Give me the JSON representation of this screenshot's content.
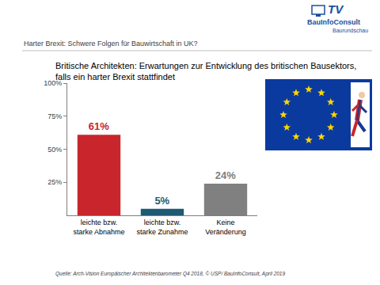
{
  "chart_data": {
    "type": "bar",
    "title": "Harter Brexit: Schwere Folgen für Bauwirtschaft in UK?",
    "subtitle": "Britische Architekten: Erwartungen zur Entwicklung des britischen Bausektors,\nfalls ein harter Brexit stattfindet",
    "categories": [
      "leichte bzw.\nstarke Abnahme",
      "leichte bzw.\nstarke Zunahme",
      "Keine\nVeränderung"
    ],
    "values": [
      61,
      5,
      24
    ],
    "value_labels": [
      "61%",
      "5%",
      "24%"
    ],
    "colors": [
      "#c8262c",
      "#1e5a73",
      "#808080"
    ],
    "ylim": [
      0,
      100
    ],
    "yticks": [
      {
        "value": 25,
        "label": "25%"
      },
      {
        "value": 50,
        "label": "50%"
      },
      {
        "value": 75,
        "label": "75%"
      },
      {
        "value": 100,
        "label": "100%"
      }
    ],
    "grid": false,
    "data_labels": true,
    "annotations": [
      "Quelle: Arch-Vision Europäischer Architektenbarometer Q4 2018, © USP/ BauInfoConsult, April 2019",
      "BauInfoConsult",
      "TV",
      "Baurundschau"
    ]
  }
}
